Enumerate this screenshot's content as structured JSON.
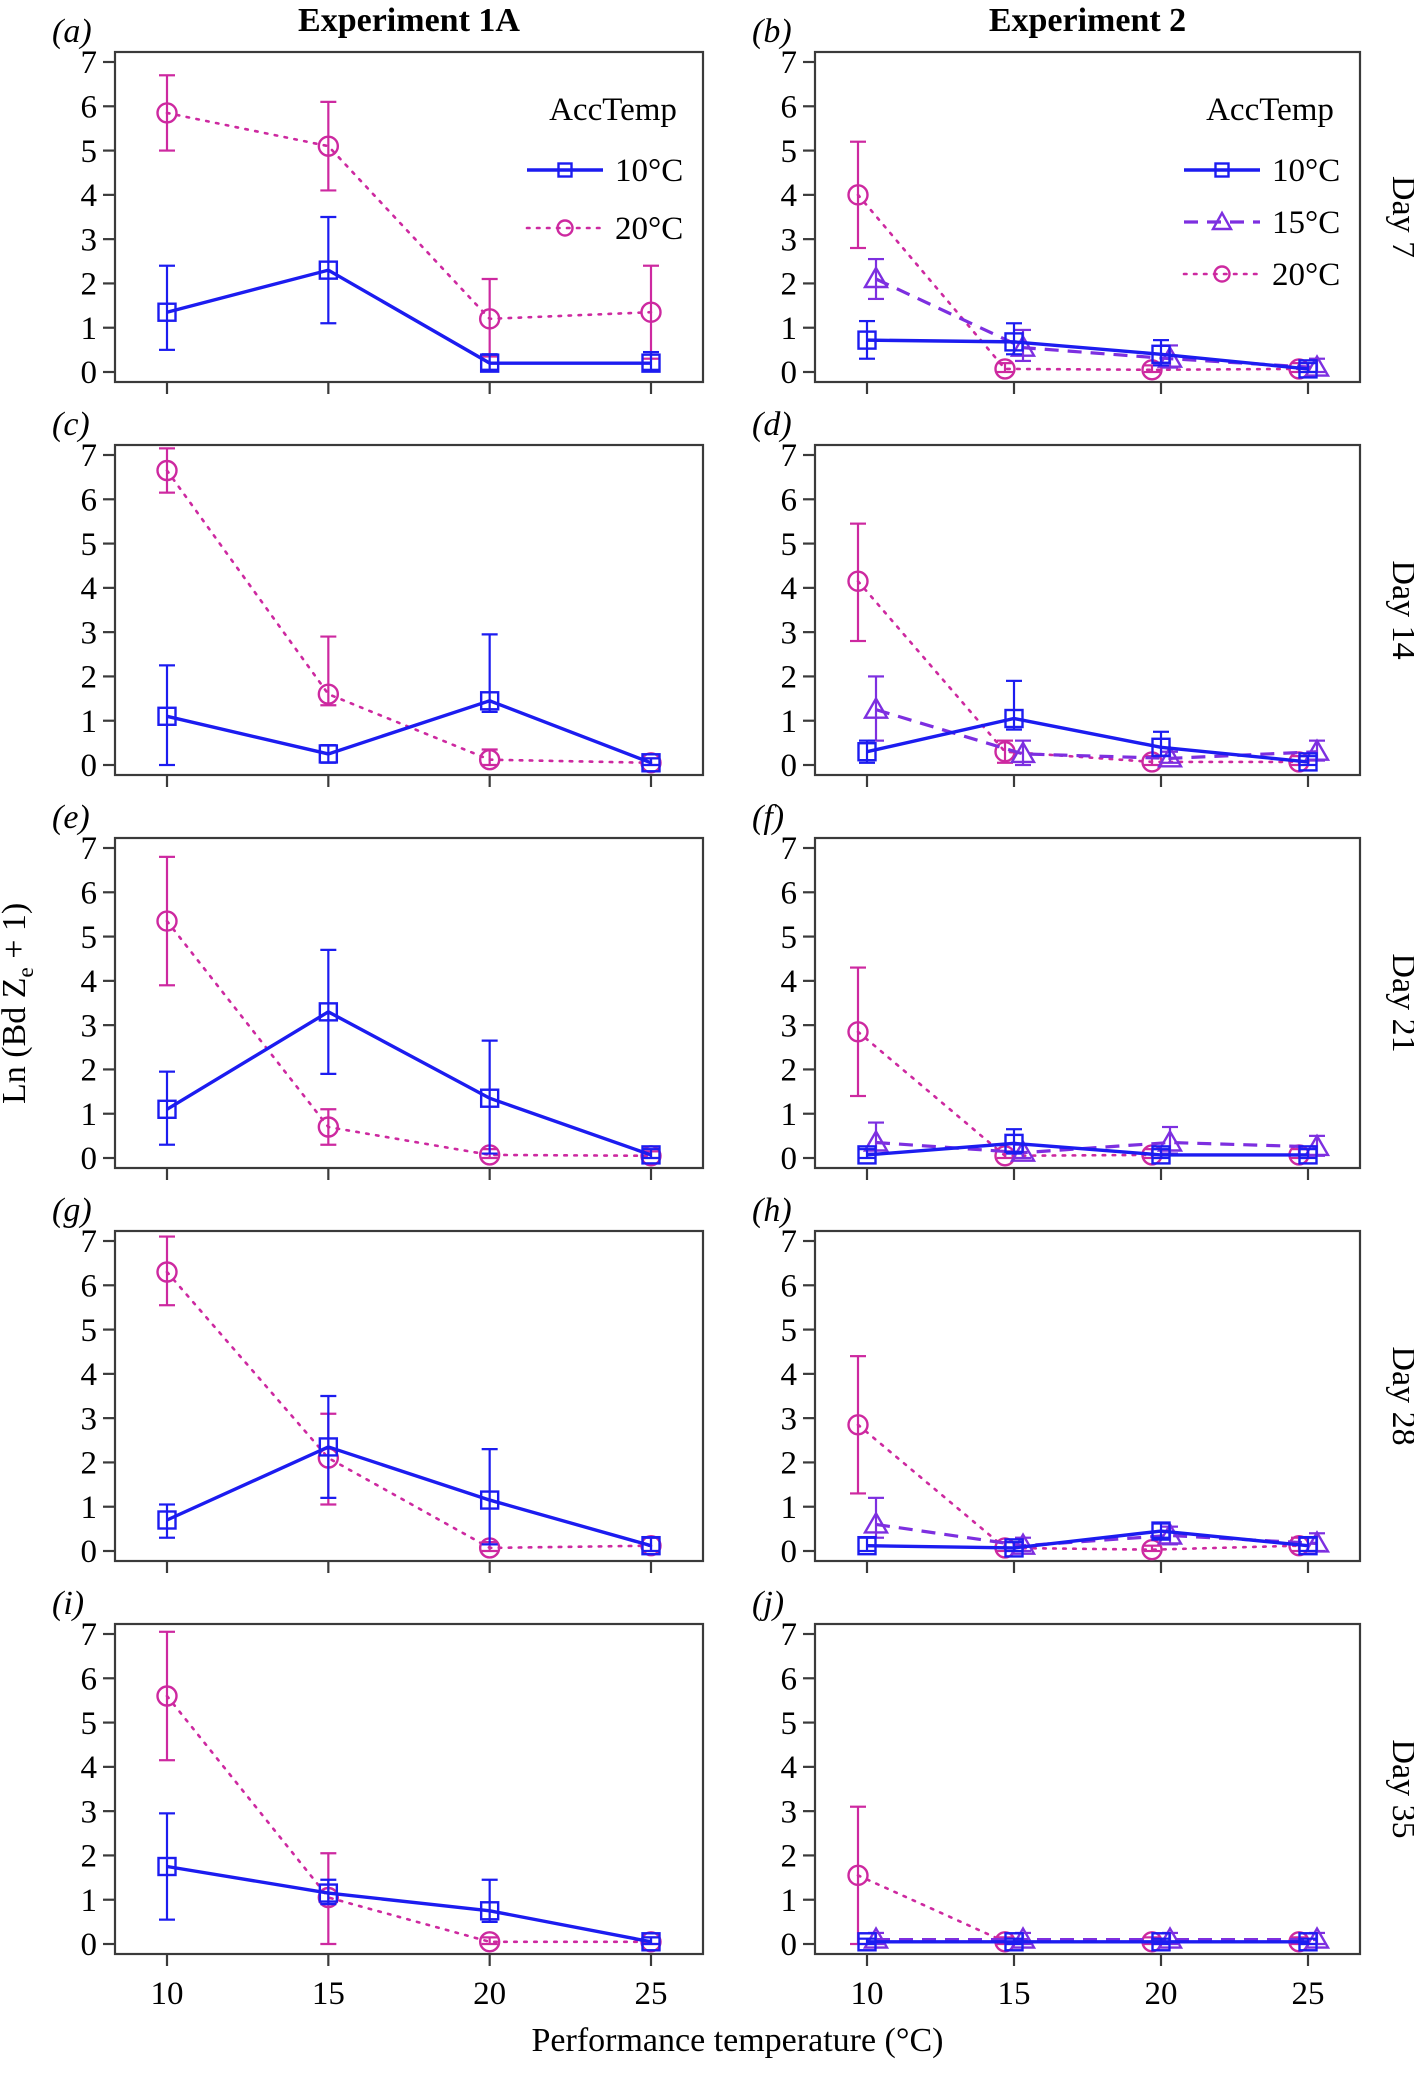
{
  "figure": {
    "column_titles": [
      "Experiment 1A",
      "Experiment 2"
    ],
    "y_axis_label": {
      "pre": "Ln (Bd Z",
      "sub": "e",
      "post": " + 1)"
    },
    "x_axis_label": "Performance temperature (°C)"
  },
  "chart_data": {
    "type": "line",
    "x": [
      10,
      15,
      20,
      25
    ],
    "x_tick_labels": [
      "10",
      "15",
      "20",
      "25"
    ],
    "y_ticks": [
      0,
      1,
      2,
      3,
      4,
      5,
      6,
      7
    ],
    "ylim": [
      0,
      7
    ],
    "xlabel": "Performance temperature (°C)",
    "ylabel": "Ln (Bd Ze + 1)",
    "legend_title": "AccTemp",
    "columns": [
      "Experiment 1A",
      "Experiment 2"
    ],
    "rows": [
      "Day 7",
      "Day 14",
      "Day 21",
      "Day 28",
      "Day 35"
    ],
    "styles": {
      "10°C": {
        "color": "#1c1cf0",
        "marker": "square",
        "line": "solid"
      },
      "15°C": {
        "color": "#7d2fe0",
        "marker": "triangle",
        "line": "dashed"
      },
      "20°C": {
        "color": "#cd29a0",
        "marker": "circle",
        "line": "dotted"
      }
    },
    "panels": [
      {
        "letter": "(a)",
        "experiment": "Experiment 1A",
        "day": "Day 7",
        "legend": [
          "10°C",
          "20°C"
        ],
        "series": [
          {
            "name": "10°C",
            "y": [
              1.35,
              2.3,
              0.2,
              0.2
            ],
            "lo": [
              0.5,
              1.1,
              0.05,
              0.05
            ],
            "hi": [
              2.4,
              3.5,
              0.4,
              0.45
            ]
          },
          {
            "name": "20°C",
            "y": [
              5.85,
              5.1,
              1.2,
              1.35
            ],
            "lo": [
              5.0,
              4.1,
              0.35,
              0.3
            ],
            "hi": [
              6.7,
              6.1,
              2.1,
              2.4
            ]
          }
        ]
      },
      {
        "letter": "(b)",
        "experiment": "Experiment 2",
        "day": "Day 7",
        "legend": [
          "10°C",
          "15°C",
          "20°C"
        ],
        "series": [
          {
            "name": "10°C",
            "y": [
              0.72,
              0.68,
              0.4,
              0.07
            ],
            "lo": [
              0.3,
              0.4,
              0.15,
              0
            ],
            "hi": [
              1.15,
              1.1,
              0.72,
              0.2
            ]
          },
          {
            "name": "15°C",
            "y": [
              2.1,
              0.55,
              0.3,
              0.1
            ],
            "lo": [
              1.65,
              0.25,
              0.1,
              0
            ],
            "hi": [
              2.55,
              0.95,
              0.6,
              0.3
            ]
          },
          {
            "name": "20°C",
            "y": [
              4.0,
              0.07,
              0.05,
              0.07
            ],
            "lo": [
              2.8,
              0,
              0,
              0
            ],
            "hi": [
              5.2,
              0.2,
              0.15,
              0.2
            ]
          }
        ]
      },
      {
        "letter": "(c)",
        "experiment": "Experiment 1A",
        "day": "Day 14",
        "legend": null,
        "series": [
          {
            "name": "10°C",
            "y": [
              1.1,
              0.25,
              1.45,
              0.05
            ],
            "lo": [
              0,
              0.05,
              1.2,
              0
            ],
            "hi": [
              2.25,
              0.45,
              2.95,
              0.15
            ]
          },
          {
            "name": "20°C",
            "y": [
              6.65,
              1.6,
              0.12,
              0.05
            ],
            "lo": [
              6.15,
              1.35,
              0,
              0
            ],
            "hi": [
              7.15,
              2.9,
              0.35,
              0.15
            ]
          }
        ]
      },
      {
        "letter": "(d)",
        "experiment": "Experiment 2",
        "day": "Day 14",
        "legend": null,
        "series": [
          {
            "name": "10°C",
            "y": [
              0.3,
              1.05,
              0.4,
              0.07
            ],
            "lo": [
              0.05,
              0.8,
              0.2,
              0
            ],
            "hi": [
              0.55,
              1.9,
              0.75,
              0.2
            ]
          },
          {
            "name": "15°C",
            "y": [
              1.25,
              0.25,
              0.15,
              0.3
            ],
            "lo": [
              0.55,
              0,
              0.05,
              0.1
            ],
            "hi": [
              2.0,
              0.55,
              0.3,
              0.55
            ]
          },
          {
            "name": "20°C",
            "y": [
              4.15,
              0.3,
              0.07,
              0.07
            ],
            "lo": [
              2.8,
              0.05,
              0,
              0
            ],
            "hi": [
              5.45,
              0.55,
              0.2,
              0.2
            ]
          }
        ]
      },
      {
        "letter": "(e)",
        "experiment": "Experiment 1A",
        "day": "Day 21",
        "legend": null,
        "series": [
          {
            "name": "10°C",
            "y": [
              1.1,
              3.3,
              1.35,
              0.07
            ],
            "lo": [
              0.3,
              1.9,
              0.1,
              0
            ],
            "hi": [
              1.95,
              4.7,
              2.65,
              0.2
            ]
          },
          {
            "name": "20°C",
            "y": [
              5.35,
              0.7,
              0.07,
              0.05
            ],
            "lo": [
              3.9,
              0.3,
              0,
              0
            ],
            "hi": [
              6.8,
              1.1,
              0.2,
              0.15
            ]
          }
        ]
      },
      {
        "letter": "(f)",
        "experiment": "Experiment 2",
        "day": "Day 21",
        "legend": null,
        "series": [
          {
            "name": "10°C",
            "y": [
              0.07,
              0.33,
              0.07,
              0.07
            ],
            "lo": [
              0,
              0.1,
              0,
              0
            ],
            "hi": [
              0.2,
              0.65,
              0.2,
              0.2
            ]
          },
          {
            "name": "15°C",
            "y": [
              0.35,
              0.12,
              0.35,
              0.25
            ],
            "lo": [
              0.1,
              0,
              0.1,
              0.05
            ],
            "hi": [
              0.8,
              0.3,
              0.7,
              0.5
            ]
          },
          {
            "name": "20°C",
            "y": [
              2.85,
              0.05,
              0.07,
              0.07
            ],
            "lo": [
              1.4,
              0,
              0,
              0
            ],
            "hi": [
              4.3,
              0.15,
              0.2,
              0.2
            ]
          }
        ]
      },
      {
        "letter": "(g)",
        "experiment": "Experiment 1A",
        "day": "Day 28",
        "legend": null,
        "series": [
          {
            "name": "10°C",
            "y": [
              0.7,
              2.35,
              1.15,
              0.12
            ],
            "lo": [
              0.3,
              1.2,
              0.15,
              0
            ],
            "hi": [
              1.05,
              3.5,
              2.3,
              0.3
            ]
          },
          {
            "name": "20°C",
            "y": [
              6.3,
              2.1,
              0.07,
              0.12
            ],
            "lo": [
              5.55,
              1.05,
              0,
              0
            ],
            "hi": [
              7.1,
              3.1,
              0.2,
              0.3
            ]
          }
        ]
      },
      {
        "letter": "(h)",
        "experiment": "Experiment 2",
        "day": "Day 28",
        "legend": null,
        "series": [
          {
            "name": "10°C",
            "y": [
              0.12,
              0.07,
              0.45,
              0.12
            ],
            "lo": [
              0,
              0,
              0.3,
              0
            ],
            "hi": [
              0.3,
              0.2,
              0.62,
              0.3
            ]
          },
          {
            "name": "15°C",
            "y": [
              0.6,
              0.12,
              0.35,
              0.17
            ],
            "lo": [
              0.3,
              0,
              0.15,
              0
            ],
            "hi": [
              1.2,
              0.3,
              0.55,
              0.4
            ]
          },
          {
            "name": "20°C",
            "y": [
              2.85,
              0.07,
              0.03,
              0.12
            ],
            "lo": [
              1.3,
              0,
              0,
              0
            ],
            "hi": [
              4.4,
              0.2,
              0.12,
              0.3
            ]
          }
        ]
      },
      {
        "letter": "(i)",
        "experiment": "Experiment 1A",
        "day": "Day 35",
        "legend": null,
        "series": [
          {
            "name": "10°C",
            "y": [
              1.75,
              1.15,
              0.75,
              0.05
            ],
            "lo": [
              0.55,
              0.9,
              0.5,
              0
            ],
            "hi": [
              2.95,
              1.45,
              1.45,
              0.15
            ]
          },
          {
            "name": "20°C",
            "y": [
              5.6,
              1.05,
              0.05,
              0.05
            ],
            "lo": [
              4.15,
              0,
              0,
              0
            ],
            "hi": [
              7.05,
              2.05,
              0.15,
              0.15
            ]
          }
        ]
      },
      {
        "letter": "(j)",
        "experiment": "Experiment 2",
        "day": "Day 35",
        "legend": null,
        "series": [
          {
            "name": "10°C",
            "y": [
              0.05,
              0.05,
              0.05,
              0.05
            ],
            "lo": [
              0,
              0,
              0,
              0
            ],
            "hi": [
              0.12,
              0.12,
              0.12,
              0.12
            ]
          },
          {
            "name": "15°C",
            "y": [
              0.1,
              0.1,
              0.1,
              0.1
            ],
            "lo": [
              0,
              0,
              0,
              0
            ],
            "hi": [
              0.25,
              0.25,
              0.25,
              0.25
            ]
          },
          {
            "name": "20°C",
            "y": [
              1.55,
              0.05,
              0.05,
              0.05
            ],
            "lo": [
              0,
              0,
              0,
              0
            ],
            "hi": [
              3.1,
              0.15,
              0.15,
              0.15
            ]
          }
        ]
      }
    ]
  }
}
